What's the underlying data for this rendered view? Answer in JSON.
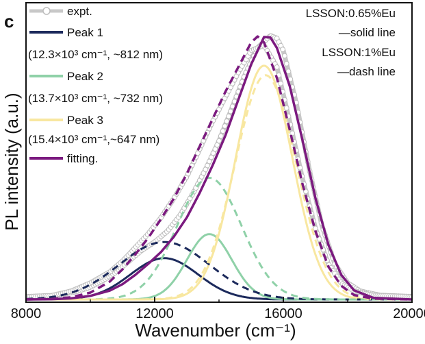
{
  "chart_data": {
    "type": "line",
    "panel_label": "c",
    "xlabel": "Wavenumber (cm⁻¹)",
    "ylabel": "PL intensity (a.u.)",
    "xlim": [
      8000,
      20000
    ],
    "ylim": [
      0,
      1.0
    ],
    "x_ticks": [
      8000,
      12000,
      16000,
      20000
    ],
    "grid": false,
    "legend_position": "top-left",
    "legend": [
      {
        "name": "expt.",
        "color": "#c8c8c8",
        "style": "line-marker"
      },
      {
        "name": "Peak 1",
        "color": "#1c2a5c",
        "sub": "(12.3×10³ cm⁻¹, ~812 nm)"
      },
      {
        "name": "Peak 2",
        "color": "#8fd1a8",
        "sub": "(13.7×10³ cm⁻¹, ~732 nm)"
      },
      {
        "name": "Peak 3",
        "color": "#f8e7a0",
        "sub": "(15.4×10³ cm⁻¹,~647 nm)"
      },
      {
        "name": "fitting.",
        "color": "#7b1a7f"
      }
    ],
    "annotations": {
      "sample1": "LSSON:0.65%Eu",
      "sample1_style": "—solid line",
      "sample2": "LSSON:1%Eu",
      "sample2_style": "—dash line"
    },
    "gaussian_series": [
      {
        "id": "peak1-solid",
        "legend": "Peak 1",
        "dataset": "LSSON:0.65%Eu",
        "style": "solid",
        "color": "#1c2a5c",
        "center": 12300,
        "amplitude": 0.151,
        "sigma": 1050
      },
      {
        "id": "peak2-solid",
        "legend": "Peak 2",
        "dataset": "LSSON:0.65%Eu",
        "style": "solid",
        "color": "#8fd1a8",
        "center": 13700,
        "amplitude": 0.239,
        "sigma": 700
      },
      {
        "id": "peak3-solid",
        "legend": "Peak 3",
        "dataset": "LSSON:0.65%Eu",
        "style": "solid",
        "color": "#f8e7a0",
        "center": 15400,
        "amplitude": 0.855,
        "sigma": 880
      },
      {
        "id": "peak1-dash",
        "legend": "Peak 1",
        "dataset": "LSSON:1%Eu",
        "style": "dash",
        "color": "#1c2a5c",
        "center": 12300,
        "amplitude": 0.21,
        "sigma": 1400
      },
      {
        "id": "peak2-dash",
        "legend": "Peak 2",
        "dataset": "LSSON:1%Eu",
        "style": "dash",
        "color": "#8fd1a8",
        "center": 13700,
        "amplitude": 0.445,
        "sigma": 1000
      },
      {
        "id": "peak3-dash",
        "legend": "Peak 3",
        "dataset": "LSSON:1%Eu",
        "style": "dash",
        "color": "#f8e7a0",
        "center": 15450,
        "amplitude": 0.82,
        "sigma": 950
      }
    ],
    "fitting_series": [
      {
        "id": "fitting-solid",
        "legend": "fitting.",
        "dataset": "LSSON:0.65%Eu",
        "style": "solid",
        "color": "#7b1a7f",
        "x": [
          8000,
          8800,
          9400,
          10000,
          10600,
          11000,
          11400,
          11800,
          12200,
          12600,
          13000,
          13400,
          13800,
          14200,
          14600,
          15000,
          15400,
          15600,
          15800,
          16200,
          16600,
          17000,
          17400,
          17800,
          18200,
          18800,
          20000
        ],
        "y": [
          0.0,
          0.001,
          0.004,
          0.013,
          0.032,
          0.056,
          0.09,
          0.13,
          0.174,
          0.23,
          0.3,
          0.39,
          0.49,
          0.6,
          0.73,
          0.86,
          0.96,
          0.958,
          0.92,
          0.78,
          0.58,
          0.37,
          0.2,
          0.09,
          0.033,
          0.006,
          0.0
        ]
      },
      {
        "id": "fitting-dash",
        "legend": "fitting.",
        "dataset": "LSSON:1%Eu",
        "style": "dash",
        "color": "#7b1a7f",
        "x": [
          8000,
          8800,
          9400,
          10000,
          10600,
          11000,
          11400,
          11800,
          12200,
          12600,
          13000,
          13400,
          13800,
          14200,
          14600,
          15000,
          15200,
          15400,
          15800,
          16200,
          16600,
          17000,
          17400,
          17800,
          18200,
          18800,
          20000
        ],
        "y": [
          0.0,
          0.002,
          0.008,
          0.025,
          0.065,
          0.11,
          0.165,
          0.225,
          0.295,
          0.37,
          0.46,
          0.56,
          0.66,
          0.76,
          0.85,
          0.94,
          0.962,
          0.94,
          0.81,
          0.62,
          0.42,
          0.25,
          0.12,
          0.05,
          0.016,
          0.003,
          0.0
        ]
      }
    ],
    "expt_series": [
      {
        "id": "expt-solid",
        "legend": "expt.",
        "dataset": "LSSON:0.65%Eu",
        "style": "marker-line",
        "color": "#c8c8c8",
        "x": [
          8000,
          8800,
          9200,
          9600,
          10000,
          10400,
          10800,
          11200,
          11600,
          12000,
          12400,
          12800,
          13200,
          13600,
          14000,
          14400,
          14800,
          15200,
          15600,
          15800,
          16000,
          16400,
          16800,
          17200,
          17600,
          18000,
          18400,
          19000,
          20000
        ],
        "y": [
          0.01,
          0.012,
          0.02,
          0.03,
          0.045,
          0.07,
          0.1,
          0.14,
          0.18,
          0.21,
          0.25,
          0.31,
          0.39,
          0.48,
          0.58,
          0.7,
          0.82,
          0.92,
          0.965,
          0.955,
          0.91,
          0.72,
          0.48,
          0.27,
          0.13,
          0.06,
          0.03,
          0.015,
          0.01
        ]
      },
      {
        "id": "expt-dash",
        "legend": "expt.",
        "dataset": "LSSON:1%Eu",
        "style": "marker-line",
        "color": "#c8c8c8",
        "x": [
          8000,
          8800,
          9400,
          10000,
          10600,
          11000,
          11400,
          11800,
          12200,
          12600,
          13000,
          13400,
          13800,
          14200,
          14600,
          15000,
          15400,
          15800,
          16200,
          16600,
          17000,
          17400,
          17800,
          18200,
          18800,
          20000
        ],
        "y": [
          0.01,
          0.014,
          0.03,
          0.06,
          0.1,
          0.14,
          0.19,
          0.24,
          0.3,
          0.37,
          0.45,
          0.55,
          0.65,
          0.74,
          0.83,
          0.91,
          0.93,
          0.85,
          0.65,
          0.44,
          0.26,
          0.13,
          0.06,
          0.03,
          0.015,
          0.01
        ]
      }
    ]
  }
}
